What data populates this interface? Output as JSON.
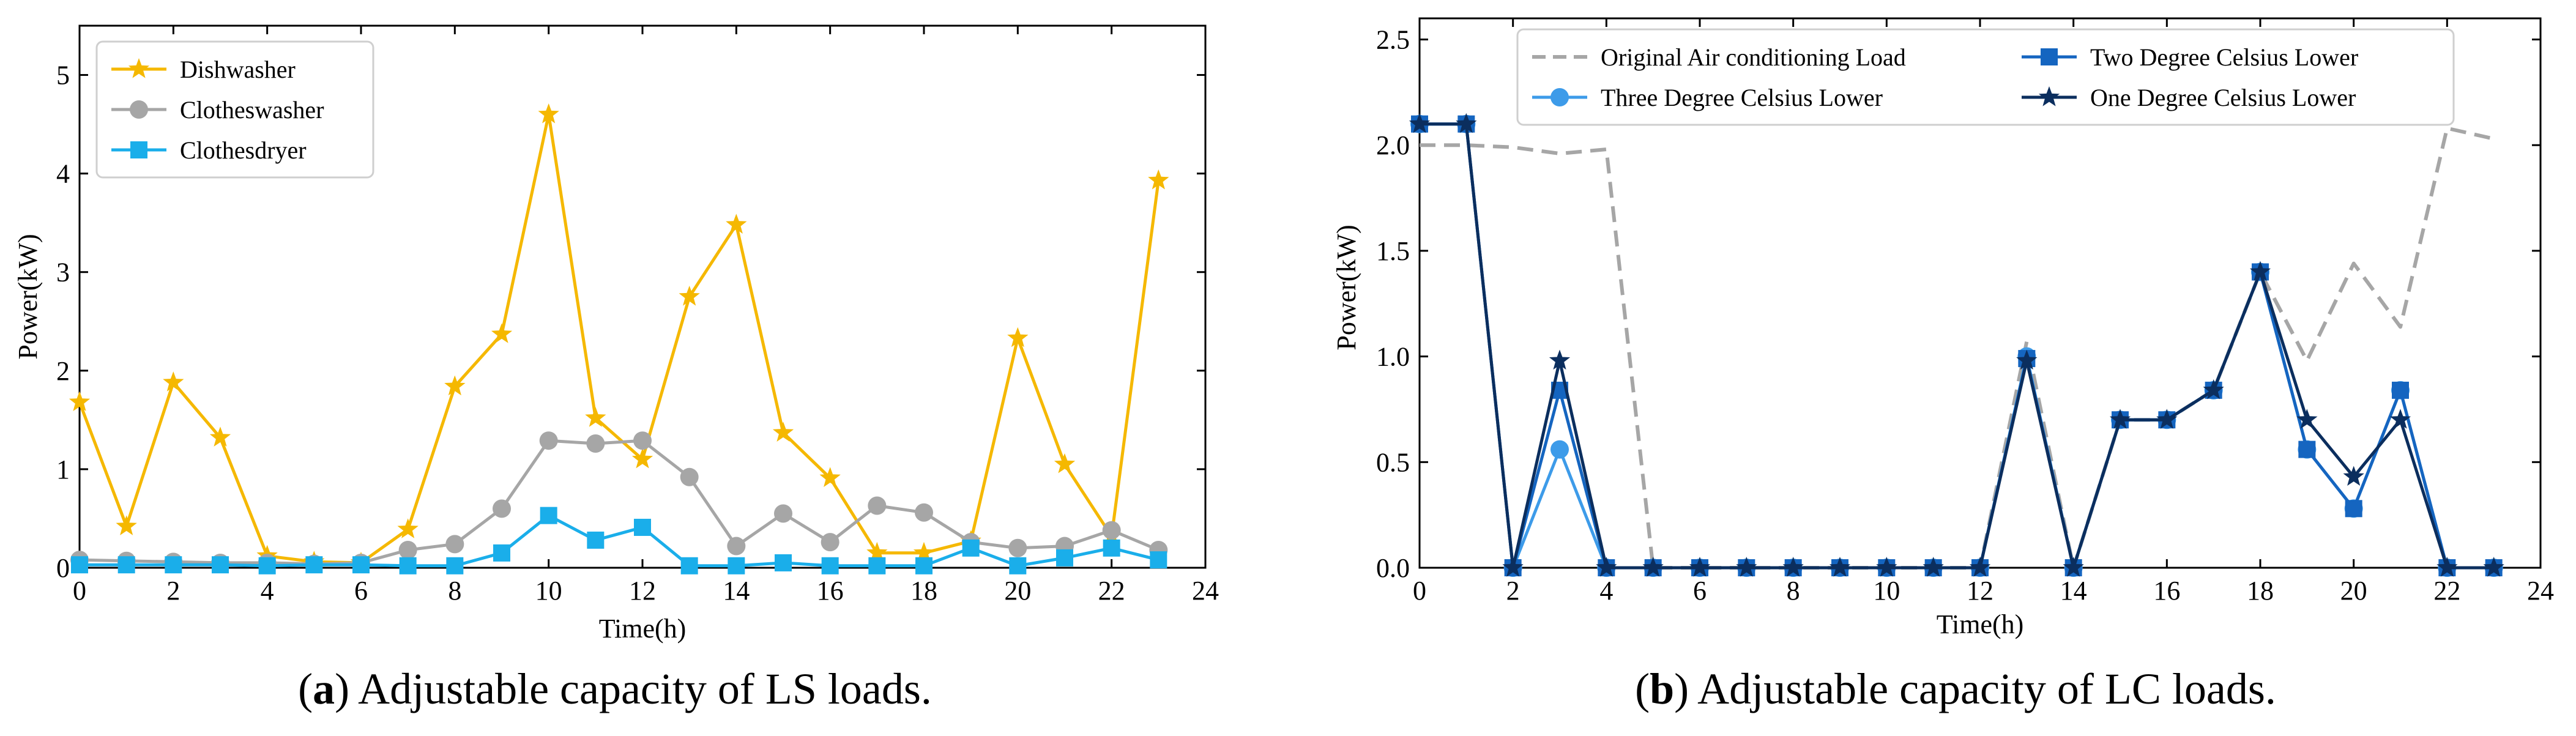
{
  "chart_data": [
    {
      "type": "line",
      "panel": "a",
      "caption": {
        "letter": "a",
        "text": "Adjustable capacity of LS loads."
      },
      "xlabel": "Time(h)",
      "ylabel": "Power(kW)",
      "xlim": [
        0,
        24
      ],
      "ylim": [
        0,
        5.5
      ],
      "xticks": [
        0,
        2,
        4,
        6,
        8,
        10,
        12,
        14,
        16,
        18,
        20,
        22,
        24
      ],
      "yticks": [
        0,
        1,
        2,
        3,
        4,
        5
      ],
      "legend_position": "top-left",
      "x": [
        0,
        1,
        2,
        3,
        4,
        5,
        6,
        7,
        8,
        9,
        10,
        11,
        12,
        13,
        14,
        15,
        16,
        17,
        18,
        19,
        20,
        21,
        22,
        23
      ],
      "series": [
        {
          "name": "Dishwasher",
          "color": "#F5B800",
          "marker": "star",
          "values": [
            1.68,
            0.42,
            1.88,
            1.32,
            0.12,
            0.06,
            0.05,
            0.39,
            1.84,
            2.37,
            4.6,
            1.52,
            1.1,
            2.75,
            3.48,
            1.37,
            0.91,
            0.15,
            0.15,
            0.27,
            2.33,
            1.05,
            0.32,
            3.93
          ]
        },
        {
          "name": "Clotheswasher",
          "color": "#A6A6A6",
          "marker": "circle",
          "values": [
            0.08,
            0.07,
            0.06,
            0.05,
            0.05,
            0.04,
            0.05,
            0.18,
            0.24,
            0.6,
            1.29,
            1.26,
            1.29,
            0.92,
            0.22,
            0.55,
            0.26,
            0.63,
            0.56,
            0.26,
            0.2,
            0.22,
            0.38,
            0.18
          ]
        },
        {
          "name": "Clothesdryer",
          "color": "#1AAEEA",
          "marker": "square",
          "values": [
            0.03,
            0.03,
            0.03,
            0.03,
            0.02,
            0.03,
            0.03,
            0.02,
            0.02,
            0.15,
            0.53,
            0.28,
            0.41,
            0.02,
            0.02,
            0.05,
            0.02,
            0.02,
            0.02,
            0.2,
            0.02,
            0.1,
            0.2,
            0.08
          ]
        }
      ]
    },
    {
      "type": "line",
      "panel": "b",
      "caption": {
        "letter": "b",
        "text": "Adjustable capacity of LC loads."
      },
      "xlabel": "Time(h)",
      "ylabel": "Power(kW)",
      "xlim": [
        0,
        24
      ],
      "ylim": [
        0,
        2.6
      ],
      "xticks": [
        0,
        2,
        4,
        6,
        8,
        10,
        12,
        14,
        16,
        18,
        20,
        22,
        24
      ],
      "yticks": [
        "0.0",
        "0.5",
        "1.0",
        "1.5",
        "2.0",
        "2.5"
      ],
      "legend_position": "top-center",
      "x": [
        0,
        1,
        2,
        3,
        4,
        5,
        6,
        7,
        8,
        9,
        10,
        11,
        12,
        13,
        14,
        15,
        16,
        17,
        18,
        19,
        20,
        21,
        22,
        23
      ],
      "series": [
        {
          "name": "Original Air conditioning Load",
          "color": "#A6A6A6",
          "marker": "none",
          "dashed": true,
          "values": [
            2.0,
            2.0,
            1.99,
            1.96,
            1.98,
            0.0,
            0.0,
            0.0,
            0.0,
            0.0,
            0.0,
            0.0,
            0.0,
            1.07,
            0.0,
            0.7,
            0.7,
            0.84,
            1.4,
            0.98,
            1.44,
            1.14,
            2.08,
            2.03
          ]
        },
        {
          "name": "Three Degree Celsius Lower",
          "color": "#3D9BE9",
          "marker": "circle",
          "values": [
            2.1,
            2.1,
            0.0,
            0.56,
            0.0,
            0.0,
            0.0,
            0.0,
            0.0,
            0.0,
            0.0,
            0.0,
            0.0,
            1.0,
            0.0,
            0.7,
            0.7,
            0.84,
            1.4,
            0.56,
            0.28,
            0.84,
            0.0,
            0.0
          ]
        },
        {
          "name": "Two Degree Celsius Lower",
          "color": "#1565C0",
          "marker": "square",
          "values": [
            2.1,
            2.1,
            0.0,
            0.84,
            0.0,
            0.0,
            0.0,
            0.0,
            0.0,
            0.0,
            0.0,
            0.0,
            0.0,
            0.99,
            0.0,
            0.7,
            0.7,
            0.84,
            1.4,
            0.56,
            0.28,
            0.84,
            0.0,
            0.0
          ]
        },
        {
          "name": "One Degree Celsius Lower",
          "color": "#0B2E5E",
          "marker": "star",
          "values": [
            2.1,
            2.1,
            0.0,
            0.98,
            0.0,
            0.0,
            0.0,
            0.0,
            0.0,
            0.0,
            0.0,
            0.0,
            0.0,
            0.98,
            0.0,
            0.7,
            0.7,
            0.84,
            1.4,
            0.7,
            0.43,
            0.7,
            0.0,
            0.0
          ]
        }
      ]
    }
  ]
}
